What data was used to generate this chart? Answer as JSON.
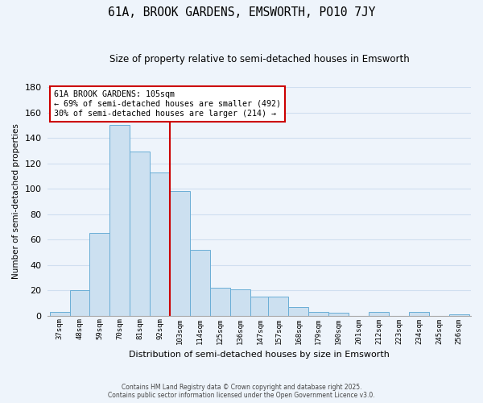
{
  "title": "61A, BROOK GARDENS, EMSWORTH, PO10 7JY",
  "subtitle": "Size of property relative to semi-detached houses in Emsworth",
  "xlabel": "Distribution of semi-detached houses by size in Emsworth",
  "ylabel": "Number of semi-detached properties",
  "bin_labels": [
    "37sqm",
    "48sqm",
    "59sqm",
    "70sqm",
    "81sqm",
    "92sqm",
    "103sqm",
    "114sqm",
    "125sqm",
    "136sqm",
    "147sqm",
    "157sqm",
    "168sqm",
    "179sqm",
    "190sqm",
    "201sqm",
    "212sqm",
    "223sqm",
    "234sqm",
    "245sqm",
    "256sqm"
  ],
  "bin_edges": [
    37,
    48,
    59,
    70,
    81,
    92,
    103,
    114,
    125,
    136,
    147,
    157,
    168,
    179,
    190,
    201,
    212,
    223,
    234,
    245,
    256
  ],
  "counts": [
    3,
    20,
    65,
    150,
    129,
    113,
    98,
    52,
    22,
    21,
    15,
    15,
    7,
    3,
    2,
    0,
    3,
    0,
    3,
    0,
    1
  ],
  "bar_color": "#cce0f0",
  "bar_edge_color": "#6aaed6",
  "vline_x": 103,
  "vline_color": "#cc0000",
  "annotation_title": "61A BROOK GARDENS: 105sqm",
  "annotation_line1": "← 69% of semi-detached houses are smaller (492)",
  "annotation_line2": "30% of semi-detached houses are larger (214) →",
  "annotation_box_color": "#ffffff",
  "annotation_box_edge": "#cc0000",
  "ylim": [
    0,
    180
  ],
  "yticks": [
    0,
    20,
    40,
    60,
    80,
    100,
    120,
    140,
    160,
    180
  ],
  "footer_line1": "Contains HM Land Registry data © Crown copyright and database right 2025.",
  "footer_line2": "Contains public sector information licensed under the Open Government Licence v3.0.",
  "bg_color": "#eef4fb",
  "grid_color": "#d0dff0"
}
